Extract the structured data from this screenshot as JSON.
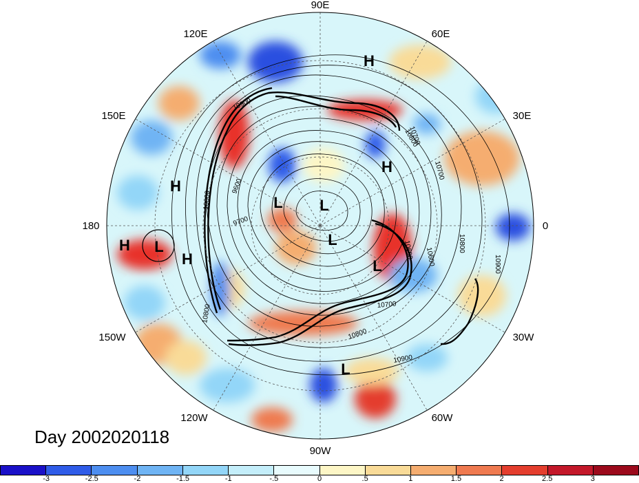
{
  "map": {
    "day_label": "Day 2002020118",
    "lon_labels": [
      "90E",
      "60E",
      "30E",
      "0",
      "30W",
      "60W",
      "90W",
      "120W",
      "150W",
      "180",
      "150E",
      "120E"
    ],
    "pressure_centers": [
      "H",
      "H",
      "H",
      "H",
      "H",
      "L",
      "L",
      "L",
      "L",
      "L",
      "L"
    ],
    "contour_labels": [
      "10900",
      "10800",
      "10700",
      "10600",
      "10700",
      "10800",
      "10900",
      "10800",
      "9700",
      "9600",
      "10800",
      "10600",
      "10700",
      "10800",
      "10900"
    ],
    "colors": {
      "ocean_bg": "#d8f6fa",
      "warm_anomaly": "#e8322a",
      "cold_anomaly": "#2a4fe0"
    }
  },
  "colorbar": {
    "ticks": [
      "-3",
      "-2.5",
      "-2",
      "-1.5",
      "-1",
      "-.5",
      "0",
      ".5",
      "1",
      "1.5",
      "2",
      "2.5",
      "3"
    ],
    "colors": [
      "#1a10c8",
      "#2f5ce8",
      "#4d8ef0",
      "#6fb4f4",
      "#93d6f8",
      "#c4eefa",
      "#e8fbfd",
      "#fdf6c6",
      "#f9db98",
      "#f5ad70",
      "#ef7a50",
      "#e43e2e",
      "#c3182a",
      "#9c0a1c"
    ]
  }
}
